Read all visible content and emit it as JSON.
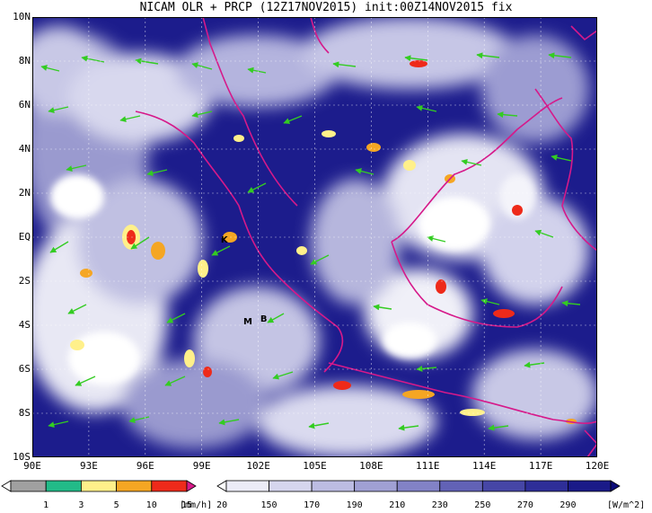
{
  "title": "NICAM OLR + PRCP (12Z17NOV2015) init:00Z14NOV2015 fix",
  "lat_labels": [
    "10N",
    "8N",
    "6N",
    "4N",
    "2N",
    "EQ",
    "2S",
    "4S",
    "6S",
    "8S",
    "10S"
  ],
  "lon_labels": [
    "90E",
    "93E",
    "96E",
    "99E",
    "102E",
    "105E",
    "108E",
    "111E",
    "114E",
    "117E",
    "120E"
  ],
  "sites": [
    {
      "label": "K",
      "lon": 100.2,
      "lat": -0.2
    },
    {
      "label": "M",
      "lon": 101.4,
      "lat": -3.9
    },
    {
      "label": "B",
      "lon": 102.3,
      "lat": -3.8
    }
  ],
  "precip_colorbar": {
    "ticks": [
      "1",
      "3",
      "5",
      "10",
      "15",
      "20"
    ],
    "unit": "[mm/h]",
    "colors": [
      "#ffffff",
      "#a0a0a0",
      "#22bb88",
      "#fff08a",
      "#f5a623",
      "#ee2a1a",
      "#d81a8a"
    ]
  },
  "olr_colorbar": {
    "ticks": [
      "150",
      "170",
      "190",
      "210",
      "230",
      "250",
      "270",
      "290"
    ],
    "unit": "[W/m^2]",
    "colors": [
      "#ffffff",
      "#ececf7",
      "#d6d6ee",
      "#bcbce2",
      "#a0a0d4",
      "#8282c6",
      "#6262b6",
      "#4646a6",
      "#2e2e98",
      "#1a1a88",
      "#0b0b78"
    ]
  },
  "colors": {
    "coast": "#d6198a",
    "wind": "#33cc22",
    "ocean_cloudless": "#1c1c8c"
  }
}
